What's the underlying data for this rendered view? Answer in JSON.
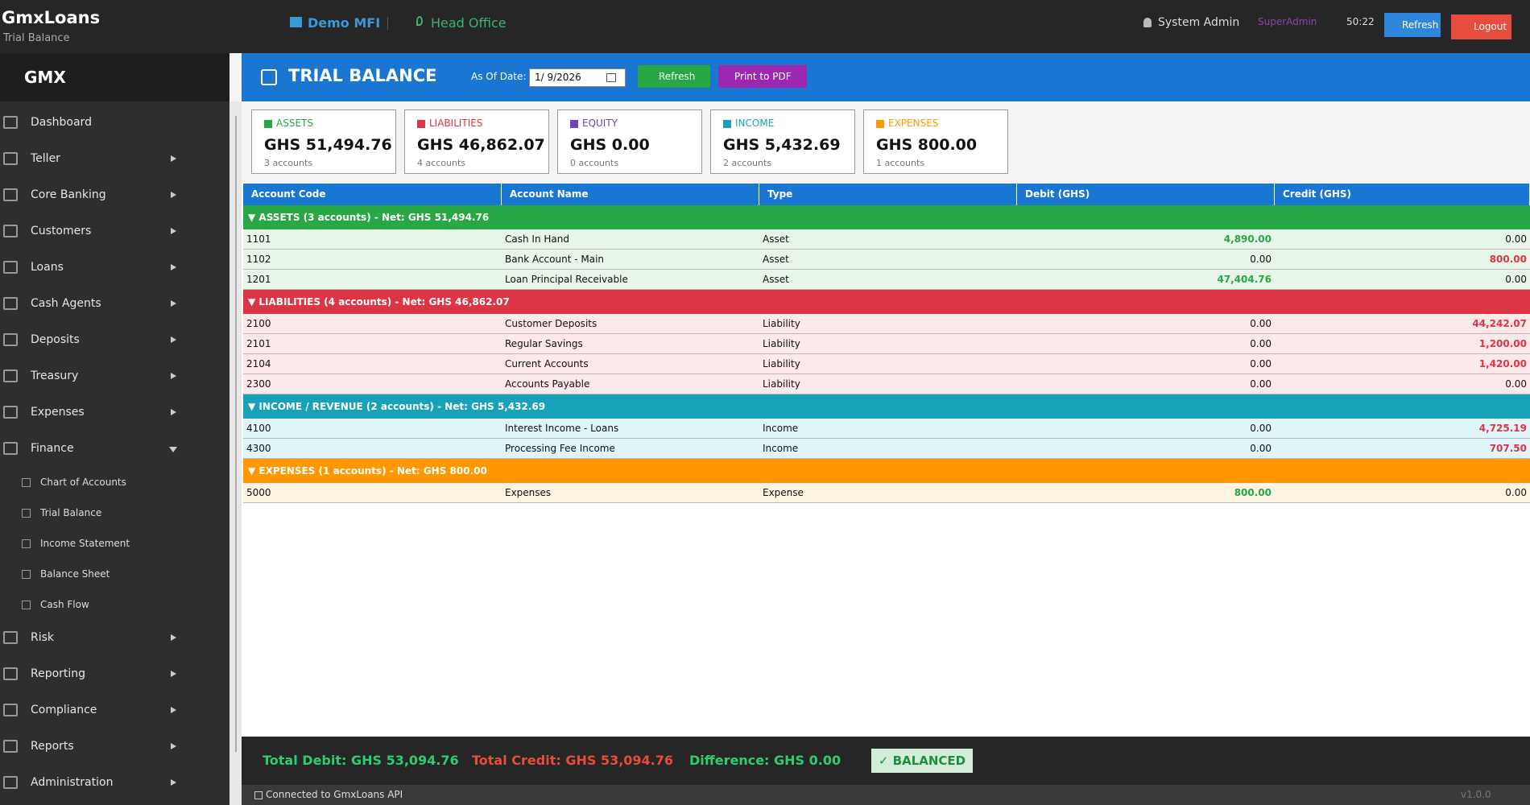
{
  "header": {
    "app_name": "GmxLoans",
    "subtitle": "Trial Balance",
    "org": "Demo MFI",
    "branch": "Head Office",
    "user": "System Admin",
    "role": "SuperAdmin",
    "timer": "50:22",
    "refresh": "Refresh",
    "logout": "Logout"
  },
  "sidebar": {
    "brand": "GMX",
    "items": [
      {
        "label": "Dashboard"
      },
      {
        "label": "Teller",
        "arrow": true
      },
      {
        "label": "Core Banking",
        "arrow": true
      },
      {
        "label": "Customers",
        "arrow": true
      },
      {
        "label": "Loans",
        "arrow": true
      },
      {
        "label": "Cash Agents",
        "arrow": true
      },
      {
        "label": "Deposits",
        "arrow": true
      },
      {
        "label": "Treasury",
        "arrow": true
      },
      {
        "label": "Expenses",
        "arrow": true
      },
      {
        "label": "Finance",
        "arrow": true,
        "expanded": true,
        "children": [
          "Chart of Accounts",
          "Trial Balance",
          "Income Statement",
          "Balance Sheet",
          "Cash Flow"
        ]
      },
      {
        "label": "Risk",
        "arrow": true
      },
      {
        "label": "Reporting",
        "arrow": true
      },
      {
        "label": "Compliance",
        "arrow": true
      },
      {
        "label": "Reports",
        "arrow": true
      },
      {
        "label": "Administration",
        "arrow": true
      }
    ]
  },
  "page": {
    "title": "TRIAL BALANCE",
    "as_of_label": "As Of Date:",
    "date": "1/ 9/2026",
    "refresh": "Refresh",
    "print": "Print to PDF"
  },
  "cards": [
    {
      "label": "ASSETS",
      "amount": "GHS 51,494.76",
      "count": "3 accounts",
      "color": "#28a745"
    },
    {
      "label": "LIABILITIES",
      "amount": "GHS 46,862.07",
      "count": "4 accounts",
      "color": "#dc3545"
    },
    {
      "label": "EQUITY",
      "amount": "GHS 0.00",
      "count": "0 accounts",
      "color": "#6f42c1"
    },
    {
      "label": "INCOME",
      "amount": "GHS 5,432.69",
      "count": "2 accounts",
      "color": "#17a2b8"
    },
    {
      "label": "EXPENSES",
      "amount": "GHS 800.00",
      "count": "1 accounts",
      "color": "#ff9800"
    }
  ],
  "table": {
    "columns": [
      "Account Code",
      "Account Name",
      "Type",
      "Debit (GHS)",
      "Credit (GHS)"
    ],
    "groups": [
      {
        "header": "▼ ASSETS (3 accounts) - Net: GHS 51,494.76",
        "color": "#28a745",
        "row_color": "#e8f5e9",
        "rows": [
          [
            "1101",
            "Cash In Hand",
            "Asset",
            "4,890.00",
            "0.00"
          ],
          [
            "1102",
            "Bank Account - Main",
            "Asset",
            "0.00",
            "800.00"
          ],
          [
            "1201",
            "Loan Principal Receivable",
            "Asset",
            "47,404.76",
            "0.00"
          ]
        ]
      },
      {
        "header": "▼ LIABILITIES (4 accounts) - Net: GHS 46,862.07",
        "color": "#dc3545",
        "row_color": "#fde8ea",
        "rows": [
          [
            "2100",
            "Customer Deposits",
            "Liability",
            "0.00",
            "44,242.07"
          ],
          [
            "2101",
            "Regular Savings",
            "Liability",
            "0.00",
            "1,200.00"
          ],
          [
            "2104",
            "Current Accounts",
            "Liability",
            "0.00",
            "1,420.00"
          ],
          [
            "2300",
            "Accounts Payable",
            "Liability",
            "0.00",
            "0.00"
          ]
        ]
      },
      {
        "header": "▼ INCOME / REVENUE (2 accounts) - Net: GHS 5,432.69",
        "color": "#17a2b8",
        "row_color": "#e0f5f8",
        "rows": [
          [
            "4100",
            "Interest Income - Loans",
            "Income",
            "0.00",
            "4,725.19"
          ],
          [
            "4300",
            "Processing Fee Income",
            "Income",
            "0.00",
            "707.50"
          ]
        ]
      },
      {
        "header": "▼ EXPENSES (1 accounts) - Net: GHS 800.00",
        "color": "#ff9800",
        "row_color": "#fdf3e1",
        "rows": [
          [
            "5000",
            "Expenses",
            "Expense",
            "800.00",
            "0.00"
          ]
        ]
      }
    ]
  },
  "footer": {
    "total_debit": "Total Debit: GHS 53,094.76",
    "total_credit": "Total Credit: GHS 53,094.76",
    "difference": "Difference: GHS 0.00",
    "status": "✓ BALANCED"
  },
  "status_bar": {
    "connection": "Connected to GmxLoans API",
    "version": "v1.0.0"
  }
}
